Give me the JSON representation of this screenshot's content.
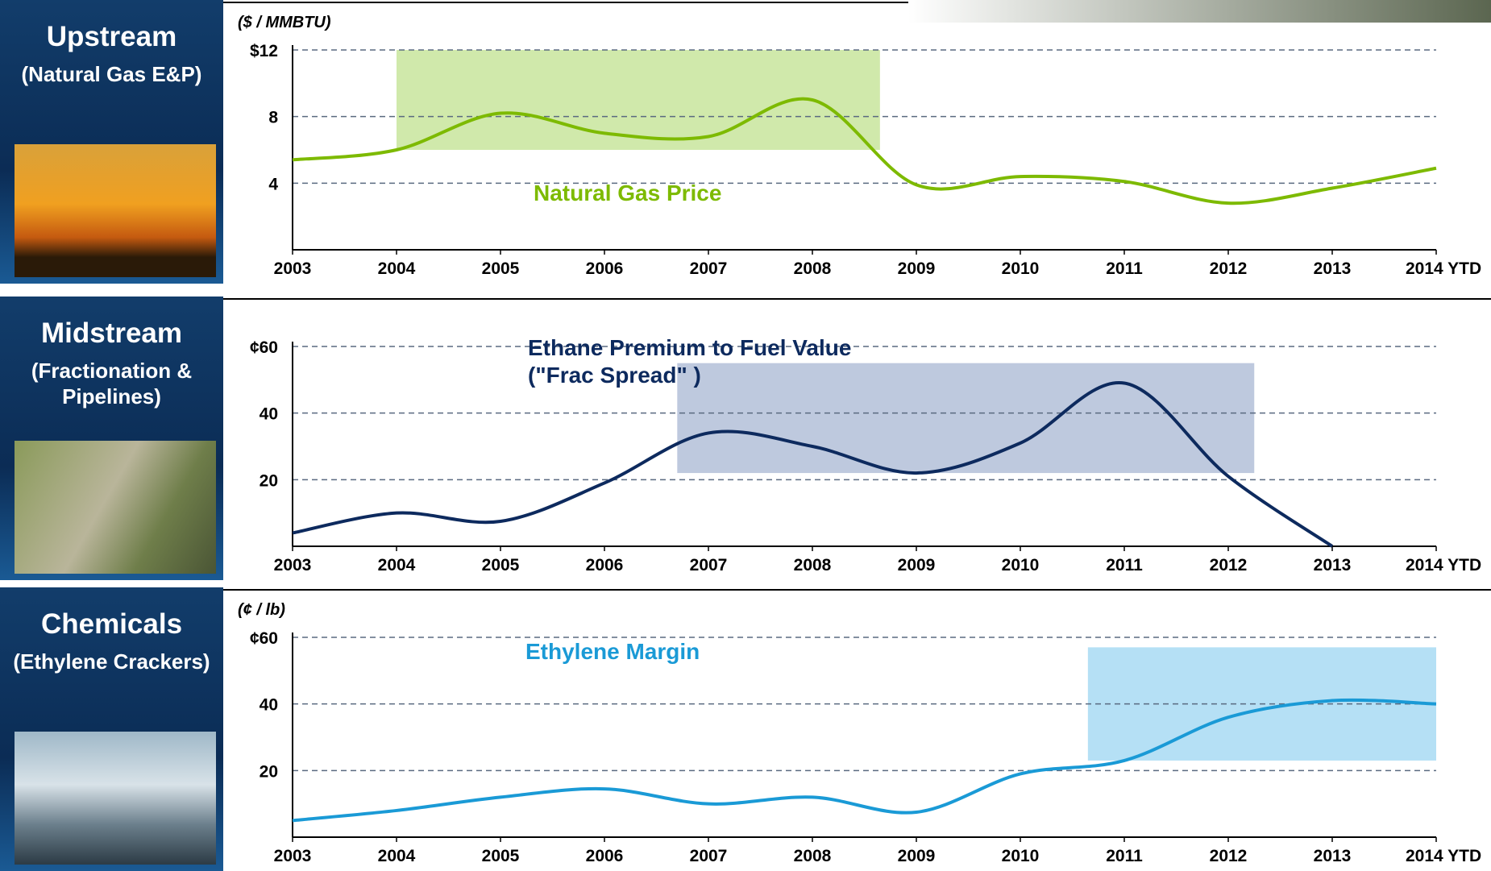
{
  "chart_data": [
    {
      "type": "line",
      "panel_title": "Upstream",
      "panel_subtitle": "(Natural Gas E&P)",
      "unit_label": "($ / MMBTU)",
      "categories": [
        "2003",
        "2004",
        "2005",
        "2006",
        "2007",
        "2008",
        "2009",
        "2010",
        "2011",
        "2012",
        "2013",
        "2014 YTD"
      ],
      "series": [
        {
          "name": "Natural Gas Price",
          "color": "#7dba00",
          "values": [
            5.4,
            6.0,
            8.2,
            7.0,
            6.8,
            9.0,
            3.9,
            4.4,
            4.1,
            2.8,
            3.7,
            4.9
          ]
        }
      ],
      "ylim": [
        0,
        12
      ],
      "yticks": [
        4,
        8,
        {
          "value": 12,
          "label": "$12"
        }
      ],
      "grid": true,
      "highlight": {
        "x": [
          1,
          5.65
        ],
        "y": [
          6,
          12
        ],
        "color": "#c8e59c"
      }
    },
    {
      "type": "line",
      "panel_title": "Midstream",
      "panel_subtitle": "(Fractionation & Pipelines)",
      "categories": [
        "2003",
        "2004",
        "2005",
        "2006",
        "2007",
        "2008",
        "2009",
        "2010",
        "2011",
        "2012",
        "2013",
        "2014 YTD"
      ],
      "series": [
        {
          "name": "Ethane Premium to Fuel Value (\"Frac Spread\" )",
          "color": "#0d2a5e",
          "values": [
            4,
            10,
            7.5,
            19,
            34,
            30,
            22,
            31,
            49,
            21,
            0,
            null
          ]
        }
      ],
      "ylim": [
        0,
        60
      ],
      "yticks": [
        20,
        40,
        {
          "value": 60,
          "label": "¢60"
        }
      ],
      "grid": true,
      "highlight": {
        "x": [
          3.7,
          9.25
        ],
        "y": [
          22,
          55
        ],
        "color": "#b3bfd8"
      }
    },
    {
      "type": "line",
      "panel_title": "Chemicals",
      "panel_subtitle": "(Ethylene Crackers)",
      "unit_label": "(¢ / lb)",
      "categories": [
        "2003",
        "2004",
        "2005",
        "2006",
        "2007",
        "2008",
        "2009",
        "2010",
        "2011",
        "2012",
        "2013",
        "2014 YTD"
      ],
      "series": [
        {
          "name": "Ethylene Margin",
          "color": "#1a9ad6",
          "values": [
            5,
            8,
            12,
            14.5,
            10,
            12,
            7.5,
            19,
            23,
            36,
            41,
            40
          ]
        }
      ],
      "ylim": [
        0,
        60
      ],
      "yticks": [
        20,
        40,
        {
          "value": 60,
          "label": "¢60"
        }
      ],
      "grid": true,
      "highlight": {
        "x": [
          7.65,
          11
        ],
        "y": [
          23,
          57
        ],
        "color": "#a8dbf3"
      }
    }
  ]
}
